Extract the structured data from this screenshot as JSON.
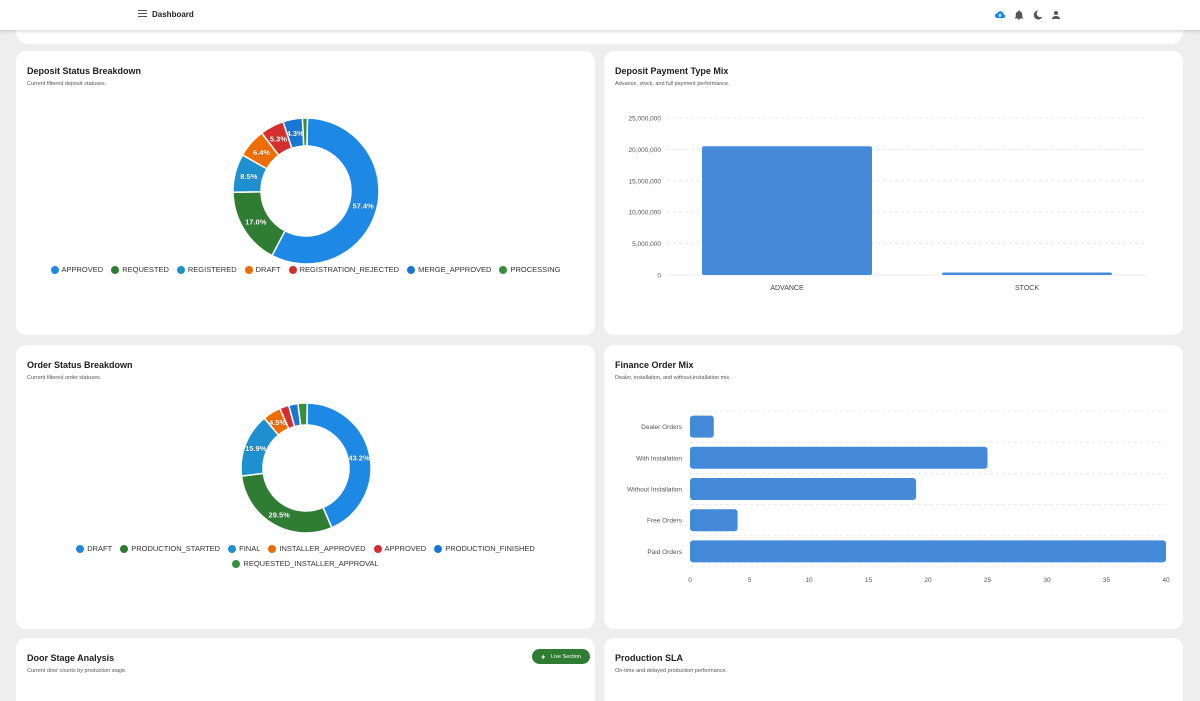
{
  "header": {
    "title": "Dashboard",
    "icons": [
      "menu-icon",
      "cloud-upload-icon",
      "bell-icon",
      "moon-icon",
      "person-icon"
    ],
    "accent_color": "#1e88e5"
  },
  "deposit_status": {
    "title": "Deposit Status Breakdown",
    "subtitle": "Current filtered deposit statuses.",
    "legend": [
      {
        "label": "APPROVED",
        "color": "#1e88e5"
      },
      {
        "label": "REQUESTED",
        "color": "#2e7d32"
      },
      {
        "label": "REGISTERED",
        "color": "#1e90d0"
      },
      {
        "label": "DRAFT",
        "color": "#ef6c00"
      },
      {
        "label": "REGISTRATION_REJECTED",
        "color": "#d32f2f"
      },
      {
        "label": "MERGE_APPROVED",
        "color": "#1976d2"
      },
      {
        "label": "PROCESSING",
        "color": "#388e3c"
      }
    ]
  },
  "payment_type": {
    "title": "Deposit Payment Type Mix",
    "subtitle": "Advance, stock, and full payment performance."
  },
  "order_status": {
    "title": "Order Status Breakdown",
    "subtitle": "Current filtered order statuses.",
    "legend": [
      {
        "label": "DRAFT",
        "color": "#1e88e5"
      },
      {
        "label": "PRODUCTION_STARTED",
        "color": "#2e7d32"
      },
      {
        "label": "FINAL",
        "color": "#1e90d0"
      },
      {
        "label": "INSTALLER_APPROVED",
        "color": "#ef6c00"
      },
      {
        "label": "APPROVED",
        "color": "#d32f2f"
      },
      {
        "label": "PRODUCTION_FINISHED",
        "color": "#1976d2"
      },
      {
        "label": "REQUESTED_INSTALLER_APPROVAL",
        "color": "#388e3c"
      }
    ]
  },
  "finance_mix": {
    "title": "Finance Order Mix",
    "subtitle": "Dealer, installation, and without-installation mix."
  },
  "door_stage": {
    "title": "Door Stage Analysis",
    "subtitle": "Current door counts by production stage.",
    "badge_label": "Live Section"
  },
  "production_sla": {
    "title": "Production SLA",
    "subtitle": "On-time and delayed production performance."
  },
  "chart_data": [
    {
      "id": "deposit",
      "type": "pie",
      "title": "Deposit Status Breakdown",
      "categories": [
        "APPROVED",
        "REQUESTED",
        "REGISTERED",
        "DRAFT",
        "REGISTRATION_REJECTED",
        "MERGE_APPROVED",
        "PROCESSING"
      ],
      "values": [
        57.4,
        17.0,
        8.5,
        6.4,
        5.3,
        4.3,
        1.1
      ],
      "labels": [
        "57.4%",
        "17.0%",
        "8.5%",
        "6.4%",
        "5.3%",
        "4.3%",
        ""
      ],
      "colors": [
        "#1e88e5",
        "#2e7d32",
        "#1e90d0",
        "#ef6c00",
        "#d32f2f",
        "#1976d2",
        "#388e3c"
      ]
    },
    {
      "id": "payment",
      "type": "bar",
      "title": "Deposit Payment Type Mix",
      "categories": [
        "ADVANCE",
        "STOCK"
      ],
      "values": [
        20500000,
        400000
      ],
      "yticks": [
        "0",
        "5,000,000",
        "10,000,000",
        "15,000,000",
        "20,000,000",
        "25,000,000"
      ],
      "ylim": [
        0,
        25000000
      ],
      "color": "#448ad9"
    },
    {
      "id": "order",
      "type": "pie",
      "title": "Order Status Breakdown",
      "categories": [
        "DRAFT",
        "PRODUCTION_STARTED",
        "FINAL",
        "INSTALLER_APPROVED",
        "APPROVED",
        "PRODUCTION_FINISHED",
        "REQUESTED_INSTALLER_APPROVAL"
      ],
      "values": [
        43.2,
        29.5,
        15.9,
        4.5,
        2.3,
        2.3,
        2.3
      ],
      "labels": [
        "43.2%",
        "29.5%",
        "15.9%",
        "4.5%",
        "",
        "",
        ""
      ],
      "colors": [
        "#1e88e5",
        "#2e7d32",
        "#1e90d0",
        "#ef6c00",
        "#d32f2f",
        "#1976d2",
        "#388e3c"
      ]
    },
    {
      "id": "finance",
      "type": "bar",
      "orientation": "horizontal",
      "title": "Finance Order Mix",
      "categories": [
        "Dealer Orders",
        "With Installation",
        "Without Installation",
        "Free Orders",
        "Paid Orders"
      ],
      "values": [
        2,
        25,
        19,
        4,
        40
      ],
      "xticks": [
        "0",
        "5",
        "10",
        "15",
        "20",
        "25",
        "30",
        "35",
        "40"
      ],
      "xlim": [
        0,
        40
      ],
      "color": "#448ad9"
    }
  ]
}
